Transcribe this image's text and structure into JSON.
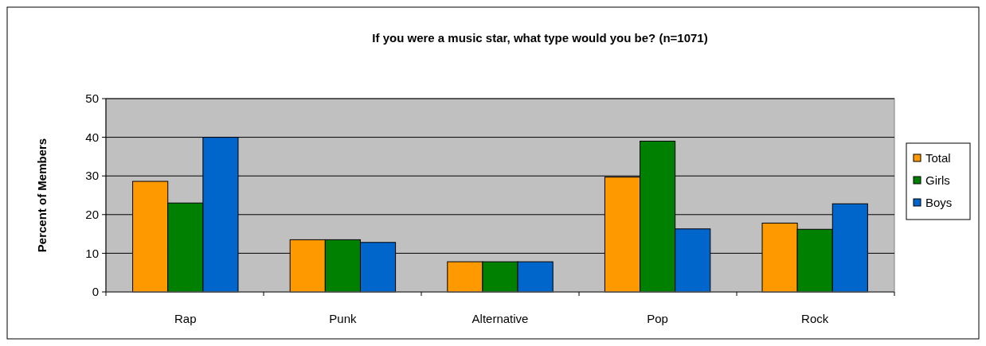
{
  "chart_data": {
    "type": "bar",
    "title": "If you were a music star, what type would you be? (n=1071)",
    "ylabel": "Percent of Members",
    "categories": [
      "Rap",
      "Punk",
      "Alternative",
      "Pop",
      "Rock"
    ],
    "series": [
      {
        "name": "Total",
        "color": "#ff9900",
        "values": [
          28.6,
          13.5,
          7.8,
          29.7,
          17.8
        ]
      },
      {
        "name": "Girls",
        "color": "#008000",
        "values": [
          23,
          13.5,
          7.8,
          39,
          16.2
        ]
      },
      {
        "name": "Boys",
        "color": "#0066cc",
        "values": [
          40,
          12.8,
          7.8,
          16.3,
          22.8
        ]
      }
    ],
    "ylim": [
      0,
      50
    ],
    "yticks": [
      0,
      10,
      20,
      30,
      40,
      50
    ],
    "grid": "y",
    "legend": "right"
  }
}
